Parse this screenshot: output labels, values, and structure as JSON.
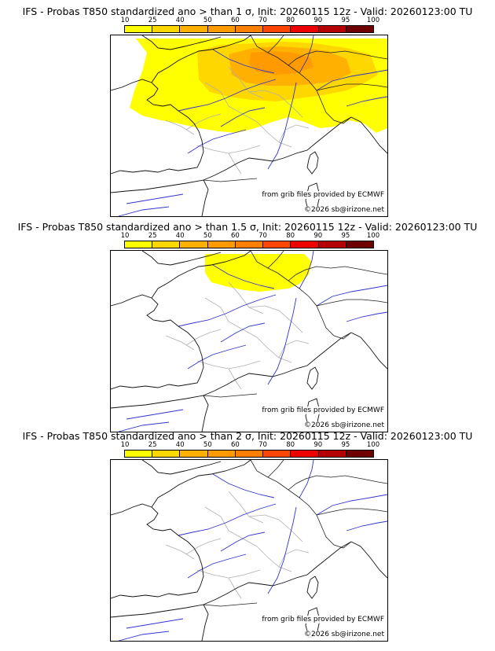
{
  "panels": [
    {
      "title": "IFS - Probas T850  standardized ano > than 1 σ, Init: 20260115 12z - Valid: 20260123:00 TU",
      "coverage": "large"
    },
    {
      "title": "IFS - Probas T850  standardized ano > than 1.5 σ, Init: 20260115 12z - Valid: 20260123:00 TU",
      "coverage": "medium"
    },
    {
      "title": "IFS - Probas T850  standardized ano > than 2 σ, Init: 20260115 12z - Valid: 20260123:00 TU",
      "coverage": "none"
    }
  ],
  "colorbar": {
    "ticks": [
      "10",
      "25",
      "40",
      "50",
      "60",
      "70",
      "80",
      "90",
      "95",
      "100"
    ],
    "colors": [
      "#ffff00",
      "#ffd700",
      "#ffb000",
      "#ff9a00",
      "#ff7f00",
      "#ff4500",
      "#ee0000",
      "#b40000",
      "#6e0000"
    ]
  },
  "credits": {
    "source": "from grib files provided by ECMWF",
    "copyright": "©2026 sb@irizone.net"
  }
}
